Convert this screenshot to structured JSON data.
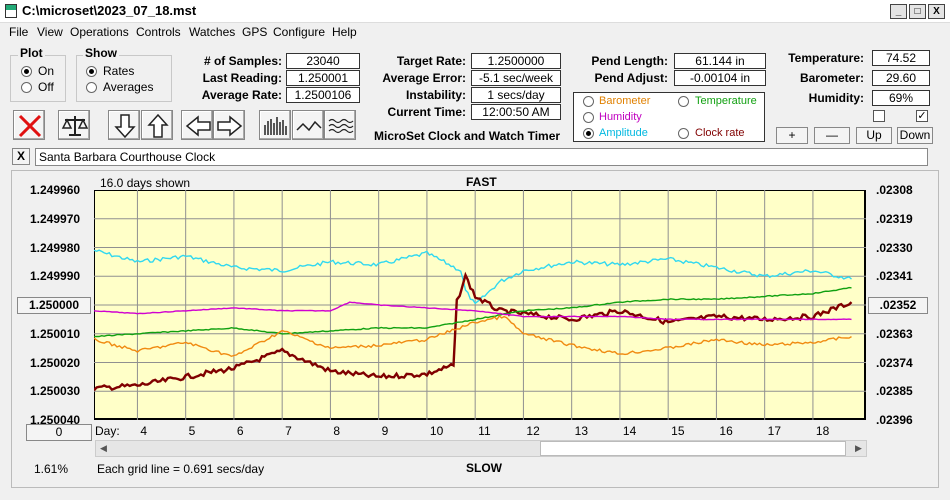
{
  "window": {
    "title": "C:\\microset\\2023_07_18.mst",
    "min": "_",
    "max": "□",
    "close": "X"
  },
  "menu": [
    "File",
    "View",
    "Operations",
    "Controls",
    "Watches",
    "GPS",
    "Configure",
    "Help"
  ],
  "plot_group": {
    "label": "Plot",
    "options": [
      "On",
      "Off"
    ],
    "selected": 0
  },
  "show_group": {
    "label": "Show",
    "options": [
      "Rates",
      "Averages"
    ],
    "selected": 0
  },
  "stats": {
    "samples_label": "# of Samples:",
    "samples": "23040",
    "last_label": "Last Reading:",
    "last": "1.250001",
    "avg_label": "Average Rate:",
    "avg": "1.2500106"
  },
  "target": {
    "rate_label": "Target Rate:",
    "rate": "1.2500000",
    "error_label": "Average Error:",
    "error": "-5.1 sec/week",
    "instab_label": "Instability:",
    "instab": "1 secs/day",
    "time_label": "Current Time:",
    "time": "12:00:50 AM",
    "caption": "MicroSet Clock and Watch Timer"
  },
  "pend": {
    "length_label": "Pend Length:",
    "length": "61.144 in",
    "adjust_label": "Pend Adjust:",
    "adjust": "-0.00104 in"
  },
  "series_select": {
    "options": [
      {
        "label": "Barometer",
        "color": "#e08000",
        "selected": false
      },
      {
        "label": "Temperature",
        "color": "#10a010",
        "selected": false
      },
      {
        "label": "Humidity",
        "color": "#c000c0",
        "selected": false
      },
      {
        "label": "Amplitude",
        "color": "#00c8e8",
        "selected": true
      },
      {
        "label": "Clock rate",
        "color": "#800000",
        "selected": false
      }
    ]
  },
  "env": {
    "temp_label": "Temperature:",
    "temp": "74.52",
    "baro_label": "Barometer:",
    "baro": "29.60",
    "hum_label": "Humidity:",
    "hum": "69%",
    "check1": false,
    "check2": true,
    "plus": "+",
    "minus": "—",
    "up": "Up",
    "down": "Down"
  },
  "clock_name": {
    "clear": "X",
    "value": "Santa Barbara Courthouse Clock"
  },
  "chart_data": {
    "type": "line",
    "days_shown": "16.0 days shown",
    "top_label": "FAST",
    "bottom_label": "SLOW",
    "grid_note": "Each grid line = 0.691 secs/day",
    "day_label": "Day:",
    "left_ticks": [
      "1.249960",
      "1.249970",
      "1.249980",
      "1.249990",
      "1.250000",
      "1.250010",
      "1.250020",
      "1.250030",
      "1.250040"
    ],
    "left_center_button": "1.250000",
    "right_ticks": [
      ".02308",
      ".02319",
      ".02330",
      ".02341",
      ".02352",
      ".02363",
      ".02374",
      ".02385",
      ".02396"
    ],
    "right_center_button": ".02352",
    "ylim": [
      1.24996,
      1.25004
    ],
    "xlim": [
      3.1,
      19.1
    ],
    "x_ticks": [
      4,
      5,
      6,
      7,
      8,
      9,
      10,
      11,
      12,
      13,
      14,
      15,
      16,
      17,
      18
    ],
    "offset_button": "0",
    "percent": "1.61%",
    "series": [
      {
        "name": "Amplitude",
        "color": "#30d8f0",
        "x": [
          3.1,
          4,
          5,
          6,
          7,
          8,
          9,
          10,
          10.7,
          10.8,
          11,
          11.5,
          12,
          13,
          14,
          15,
          16,
          17,
          18,
          18.8
        ],
        "y": [
          1.249981,
          1.249985,
          1.249983,
          1.249987,
          1.249988,
          1.249985,
          1.249986,
          1.249982,
          1.249988,
          1.249995,
          1.25,
          1.249992,
          1.249988,
          1.249985,
          1.249986,
          1.249984,
          1.249987,
          1.24999,
          1.249988,
          1.249991
        ]
      },
      {
        "name": "Clock rate",
        "color": "#800000",
        "x": [
          3.1,
          4,
          5,
          6,
          7,
          8,
          9,
          10,
          10.55,
          10.62,
          10.8,
          11,
          11.5,
          12,
          13,
          14,
          15,
          16,
          17,
          18,
          18.8
        ],
        "y": [
          1.250029,
          1.250028,
          1.250025,
          1.250022,
          1.250016,
          1.250023,
          1.250025,
          1.250024,
          1.250021,
          1.249999,
          1.24999,
          1.249997,
          1.250002,
          1.250003,
          1.250005,
          1.250002,
          1.250006,
          1.250004,
          1.250005,
          1.250004,
          1.249999
        ]
      },
      {
        "name": "Temperature",
        "color": "#10a010",
        "x": [
          3.1,
          4,
          5,
          6,
          7,
          8,
          9,
          10,
          11,
          12,
          13,
          14,
          15,
          16,
          17,
          18,
          18.8
        ],
        "y": [
          1.250011,
          1.25001,
          1.250009,
          1.250008,
          1.25001,
          1.250009,
          1.250008,
          1.250008,
          1.250005,
          1.250002,
          1.250001,
          1.249999,
          1.249998,
          1.249998,
          1.249997,
          1.249996,
          1.249994
        ]
      },
      {
        "name": "Humidity",
        "color": "#d000d0",
        "x": [
          3.1,
          4,
          5,
          6,
          7,
          8,
          8.4,
          9,
          10,
          11,
          12,
          13,
          14,
          15,
          16,
          17,
          18,
          18.8
        ],
        "y": [
          1.250002,
          1.250003,
          1.250002,
          1.250001,
          1.250002,
          1.250002,
          1.249999,
          1.25,
          1.250001,
          1.250002,
          1.250004,
          1.250004,
          1.250004,
          1.250005,
          1.250005,
          1.250005,
          1.250005,
          1.250005
        ]
      },
      {
        "name": "Barometer",
        "color": "#f08a10",
        "x": [
          3.1,
          4,
          5,
          6,
          7,
          8,
          9,
          10,
          11,
          11.6,
          12,
          13,
          14,
          15,
          16,
          17,
          18,
          18.8
        ],
        "y": [
          1.250012,
          1.250016,
          1.250013,
          1.250018,
          1.250009,
          1.250015,
          1.250014,
          1.250012,
          1.250006,
          1.250004,
          1.25001,
          1.250014,
          1.250017,
          1.250015,
          1.250012,
          1.250014,
          1.250013,
          1.250011
        ]
      }
    ]
  }
}
